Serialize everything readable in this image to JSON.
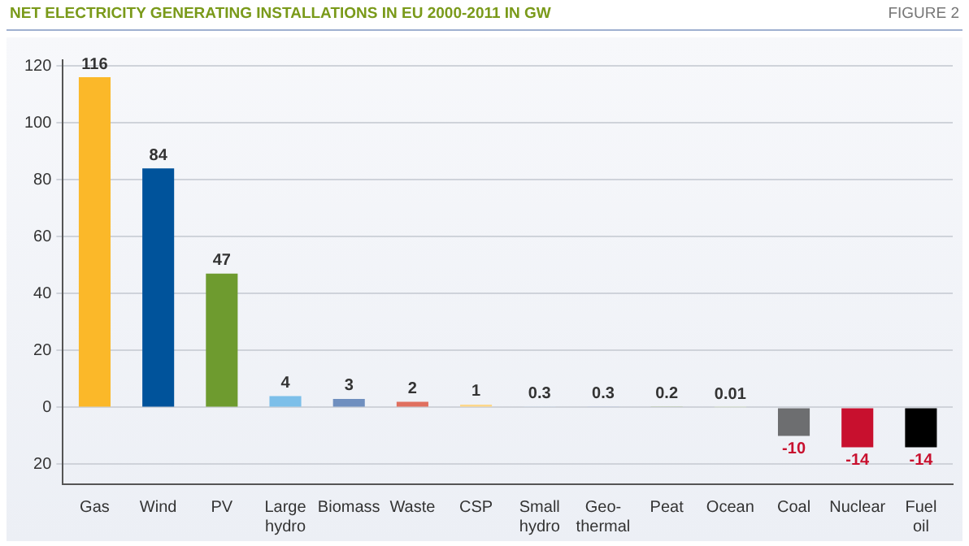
{
  "chart_data": {
    "type": "bar",
    "title": "NET ELECTRICITY GENERATING INSTALLATIONS IN EU 2000-2011 IN GW",
    "annotations": [
      "FIGURE 2"
    ],
    "categories": [
      "Gas",
      "Wind",
      "PV",
      "Large hydro",
      "Biomass",
      "Waste",
      "CSP",
      "Small hydro",
      "Geo-thermal",
      "Peat",
      "Ocean",
      "Coal",
      "Nuclear",
      "Fuel oil"
    ],
    "values": [
      116,
      84,
      47,
      4,
      3,
      2,
      1,
      0.3,
      0.3,
      0.2,
      0.01,
      -10,
      -14,
      -14
    ],
    "colors": [
      "#fbb829",
      "#00539b",
      "#6e9b2f",
      "#7cbfe9",
      "#6f8fbf",
      "#e07060",
      "#fdd78a",
      "#cfe3f5",
      "#b8c8e6",
      "#a6c17a",
      "#dfeacd",
      "#6d6e70",
      "#c8102e",
      "#000000"
    ],
    "ylim": [
      -27,
      122
    ],
    "yticks": [
      {
        "value": -20,
        "label": "20"
      },
      0,
      20,
      40,
      60,
      80,
      100,
      120
    ],
    "grid": "y",
    "data_labels": true
  }
}
